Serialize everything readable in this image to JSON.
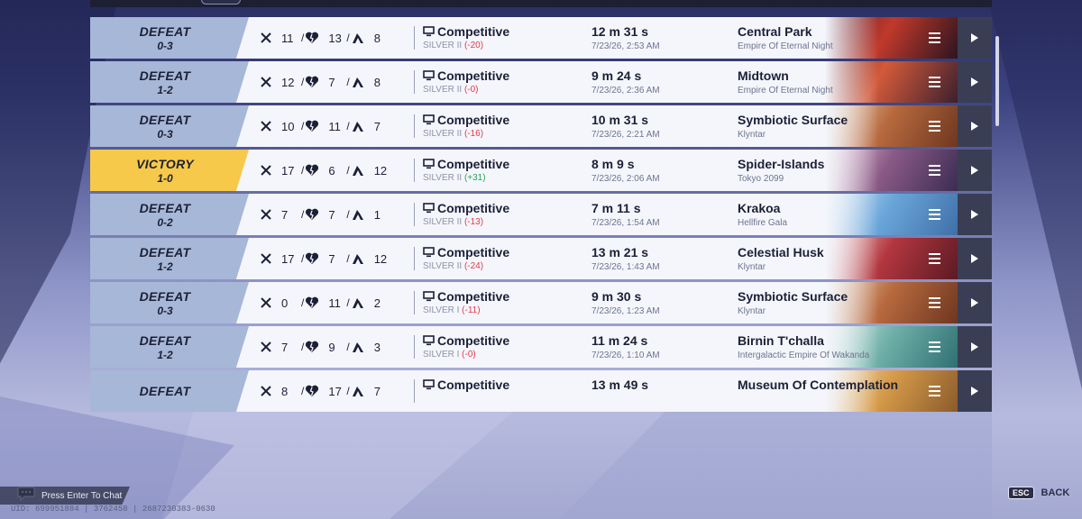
{
  "matches": [
    {
      "result": "DEFEAT",
      "score": "0-3",
      "kills": "11",
      "deaths": "13",
      "assists": "8",
      "mode": "Competitive",
      "rank": "SILVER II",
      "delta": "(-20)",
      "delta_sign": "neg",
      "duration": "12 m 31 s",
      "date": "7/23/26, 2:53 AM",
      "map": "Central Park",
      "region": "Empire Of Eternal Night",
      "theme": "red-night"
    },
    {
      "result": "DEFEAT",
      "score": "1-2",
      "kills": "12",
      "deaths": "7",
      "assists": "8",
      "mode": "Competitive",
      "rank": "SILVER II",
      "delta": "(-0)",
      "delta_sign": "neg",
      "duration": "9 m 24 s",
      "date": "7/23/26, 2:36 AM",
      "map": "Midtown",
      "region": "Empire Of Eternal Night",
      "theme": "red-city"
    },
    {
      "result": "DEFEAT",
      "score": "0-3",
      "kills": "10",
      "deaths": "11",
      "assists": "7",
      "mode": "Competitive",
      "rank": "SILVER II",
      "delta": "(-16)",
      "delta_sign": "neg",
      "duration": "10 m 31 s",
      "date": "7/23/26, 2:21 AM",
      "map": "Symbiotic Surface",
      "region": "Klyntar",
      "theme": "canyon"
    },
    {
      "result": "VICTORY",
      "score": "1-0",
      "kills": "17",
      "deaths": "6",
      "assists": "12",
      "mode": "Competitive",
      "rank": "SILVER II",
      "delta": "(+31)",
      "delta_sign": "pos",
      "duration": "8 m 9 s",
      "date": "7/23/26, 2:06 AM",
      "map": "Spider-Islands",
      "region": "Tokyo 2099",
      "theme": "pink-city"
    },
    {
      "result": "DEFEAT",
      "score": "0-2",
      "kills": "7",
      "deaths": "7",
      "assists": "1",
      "mode": "Competitive",
      "rank": "SILVER II",
      "delta": "(-13)",
      "delta_sign": "neg",
      "duration": "7 m 11 s",
      "date": "7/23/26, 1:54 AM",
      "map": "Krakoa",
      "region": "Hellfire Gala",
      "theme": "blue"
    },
    {
      "result": "DEFEAT",
      "score": "1-2",
      "kills": "17",
      "deaths": "7",
      "assists": "12",
      "mode": "Competitive",
      "rank": "SILVER II",
      "delta": "(-24)",
      "delta_sign": "neg",
      "duration": "13 m 21 s",
      "date": "7/23/26, 1:43 AM",
      "map": "Celestial Husk",
      "region": "Klyntar",
      "theme": "crimson"
    },
    {
      "result": "DEFEAT",
      "score": "0-3",
      "kills": "0",
      "deaths": "11",
      "assists": "2",
      "mode": "Competitive",
      "rank": "SILVER I",
      "delta": "(-11)",
      "delta_sign": "neg",
      "duration": "9 m 30 s",
      "date": "7/23/26, 1:23 AM",
      "map": "Symbiotic Surface",
      "region": "Klyntar",
      "theme": "canyon"
    },
    {
      "result": "DEFEAT",
      "score": "1-2",
      "kills": "7",
      "deaths": "9",
      "assists": "3",
      "mode": "Competitive",
      "rank": "SILVER I",
      "delta": "(-0)",
      "delta_sign": "neg",
      "duration": "11 m 24 s",
      "date": "7/23/26, 1:10 AM",
      "map": "Birnin T'challa",
      "region": "Intergalactic Empire Of Wakanda",
      "theme": "teal"
    },
    {
      "result": "DEFEAT",
      "score": "",
      "kills": "8",
      "deaths": "17",
      "assists": "7",
      "mode": "Competitive",
      "rank": "",
      "delta": "",
      "delta_sign": "neg",
      "duration": "13 m 49 s",
      "date": "",
      "map": "Museum Of Contemplation",
      "region": "",
      "theme": "gold"
    }
  ],
  "footer": {
    "chat_prompt": "Press Enter To Chat",
    "uid": "UID: 699951884 | 3762458 | 2687230383-0630",
    "esc_key": "ESC",
    "back_label": "BACK"
  },
  "colors": {
    "victory": "#f6c94a",
    "defeat": "#a7b7d7",
    "negative": "#e5394b",
    "positive": "#27a35a"
  }
}
